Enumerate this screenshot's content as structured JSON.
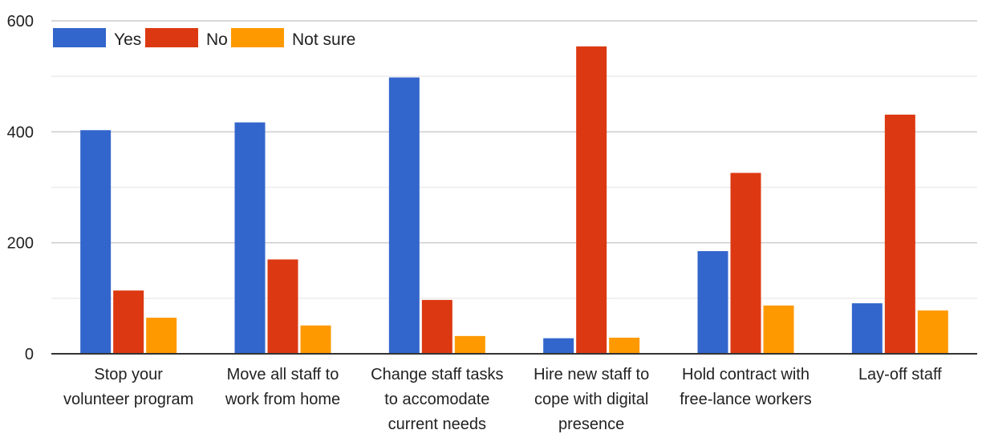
{
  "chart_data": {
    "type": "bar",
    "categories": [
      [
        "Stop your",
        "volunteer program"
      ],
      [
        "Move all staff to",
        "work from home"
      ],
      [
        "Change staff tasks",
        "to accomodate",
        "current needs"
      ],
      [
        "Hire new staff to",
        "cope with digital",
        "presence"
      ],
      [
        "Hold contract with",
        "free-lance workers"
      ],
      [
        "Lay-off staff"
      ]
    ],
    "series": [
      {
        "name": "Yes",
        "color": "#3366cc",
        "values": [
          403,
          417,
          498,
          28,
          185,
          91
        ]
      },
      {
        "name": "No",
        "color": "#dc3912",
        "values": [
          114,
          170,
          97,
          554,
          326,
          431
        ]
      },
      {
        "name": "Not sure",
        "color": "#ff9900",
        "values": [
          65,
          51,
          32,
          29,
          87,
          78
        ]
      }
    ],
    "title": "",
    "xlabel": "",
    "ylabel": "",
    "ylim": [
      0,
      600
    ],
    "yticks": [
      0,
      200,
      400,
      600
    ],
    "grid": true,
    "legend_position": "top-left"
  }
}
